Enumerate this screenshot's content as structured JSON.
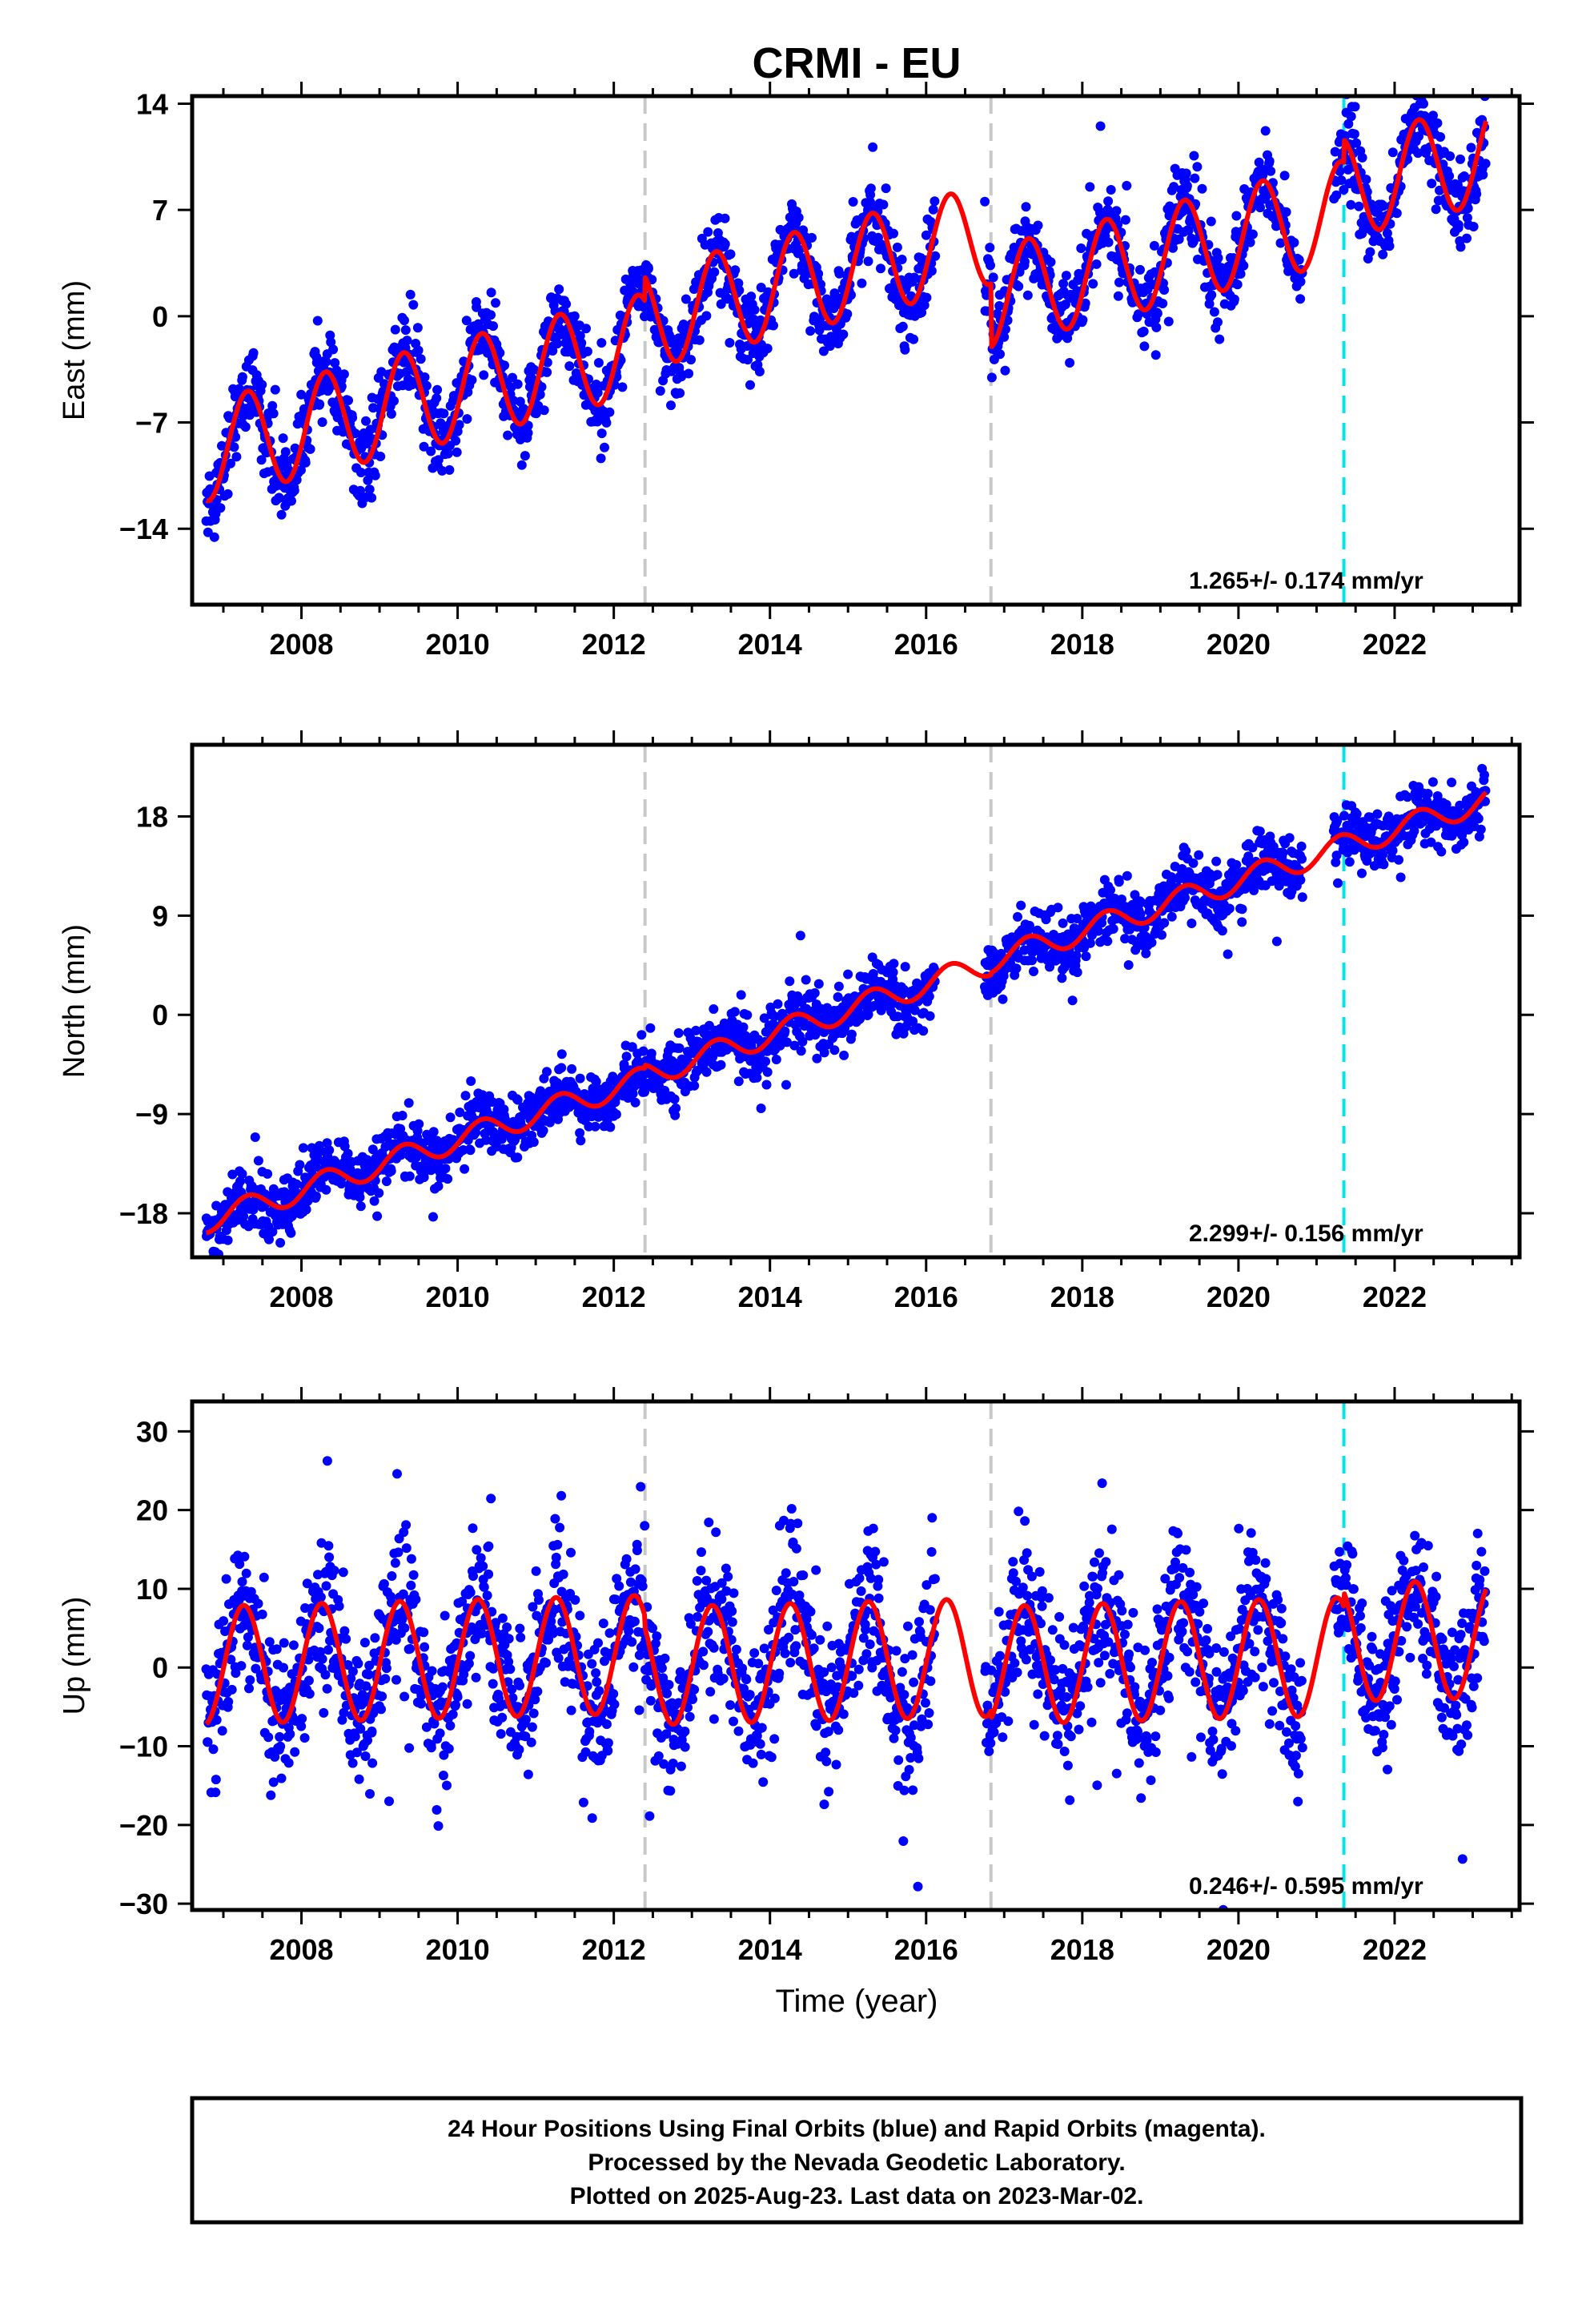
{
  "title": "CRMI - EU",
  "xlabel": "Time (year)",
  "footer": {
    "line1": "24 Hour Positions Using Final Orbits (blue) and Rapid Orbits (magenta).",
    "line2": "Processed by the Nevada Geodetic Laboratory.",
    "line3": "Plotted on 2025-Aug-23. Last data on 2023-Mar-02."
  },
  "colors": {
    "final_orbits": "#0000ff",
    "model_fit": "#ff0000",
    "gray_event_line": "#c8c8c8",
    "cyan_event_line": "#00e5ee"
  },
  "chart_data": [
    {
      "type": "scatter",
      "component": "east",
      "ylabel": "East (mm)",
      "xlim": [
        2006.6,
        2023.6
      ],
      "ylim": [
        -19.0,
        14.5
      ],
      "xticks": [
        2008,
        2010,
        2012,
        2014,
        2016,
        2018,
        2020,
        2022
      ],
      "yticks": [
        14,
        7,
        0,
        -7,
        -14
      ],
      "ytick_labels": [
        "14",
        "7",
        "0",
        "−7",
        "−14"
      ],
      "rate_label": "1.265+/- 0.174 mm/yr",
      "model": {
        "offset": -8.9,
        "slope": 1.265,
        "amp": 3.3,
        "phase": 1.75,
        "steps": [
          {
            "t": 2012.4,
            "dy": 1.6
          },
          {
            "t": 2016.83,
            "dy": -4.2
          },
          {
            "t": 2021.35,
            "dy": 1.5
          }
        ]
      },
      "scatter": {
        "sd": 1.3,
        "gap_yrs": [
          [
            2016.12,
            2016.75
          ],
          [
            2020.82,
            2021.22
          ]
        ],
        "start": 2006.78,
        "end": 2023.17
      },
      "event_lines": [
        {
          "x": 2012.4,
          "color": "#c8c8c8"
        },
        {
          "x": 2016.83,
          "color": "#c8c8c8"
        },
        {
          "x": 2021.35,
          "color": "#00e5ee"
        }
      ],
      "series": [
        {
          "name": "Final Orbits",
          "style": "points",
          "color": "#0000ff"
        },
        {
          "name": "Model",
          "style": "line",
          "color": "#ff0000"
        }
      ]
    },
    {
      "type": "scatter",
      "component": "north",
      "ylabel": "North (mm)",
      "xlim": [
        2006.6,
        2023.6
      ],
      "ylim": [
        -22.0,
        24.5
      ],
      "xticks": [
        2008,
        2010,
        2012,
        2014,
        2016,
        2018,
        2020,
        2022
      ],
      "yticks": [
        18,
        9,
        0,
        -9,
        -18
      ],
      "ytick_labels": [
        "18",
        "9",
        "0",
        "−9",
        "−18"
      ],
      "rate_label": "2.299+/- 0.156 mm/yr",
      "model": {
        "offset": -18.7,
        "slope": 2.299,
        "amp": 1.1,
        "phase": 1.75,
        "steps": [
          {
            "t": 2012.4,
            "dy": 0.3
          },
          {
            "t": 2016.83,
            "dy": 0.2
          },
          {
            "t": 2021.35,
            "dy": 0.0
          }
        ]
      },
      "scatter": {
        "sd": 1.3,
        "gap_yrs": [
          [
            2016.12,
            2016.75
          ],
          [
            2020.82,
            2021.22
          ]
        ],
        "start": 2006.78,
        "end": 2023.17
      },
      "event_lines": [
        {
          "x": 2012.4,
          "color": "#c8c8c8"
        },
        {
          "x": 2016.83,
          "color": "#c8c8c8"
        },
        {
          "x": 2021.35,
          "color": "#00e5ee"
        }
      ],
      "series": [
        {
          "name": "Final Orbits",
          "style": "points",
          "color": "#0000ff"
        },
        {
          "name": "Model",
          "style": "line",
          "color": "#ff0000"
        }
      ]
    },
    {
      "type": "scatter",
      "component": "up",
      "ylabel": "Up (mm)",
      "xlim": [
        2006.6,
        2023.6
      ],
      "ylim": [
        -30.8,
        33.8
      ],
      "xticks": [
        2008,
        2010,
        2012,
        2014,
        2016,
        2018,
        2020,
        2022
      ],
      "yticks": [
        30,
        20,
        10,
        0,
        -10,
        -20,
        -30
      ],
      "ytick_labels": [
        "30",
        "20",
        "10",
        "0",
        "−10",
        "−20",
        "−30"
      ],
      "rate_label": "0.246+/- 0.595 mm/yr",
      "model": {
        "offset": 0.3,
        "slope": 0.246,
        "amp": 7.5,
        "phase": 1.45,
        "steps": [
          {
            "t": 2012.4,
            "dy": -1.5
          },
          {
            "t": 2016.83,
            "dy": -1.0
          },
          {
            "t": 2021.35,
            "dy": 1.8
          }
        ]
      },
      "scatter": {
        "sd": 4.6,
        "gap_yrs": [
          [
            2016.12,
            2016.75
          ],
          [
            2020.82,
            2021.22
          ]
        ],
        "start": 2006.78,
        "end": 2023.17
      },
      "event_lines": [
        {
          "x": 2012.4,
          "color": "#c8c8c8"
        },
        {
          "x": 2016.83,
          "color": "#c8c8c8"
        },
        {
          "x": 2021.35,
          "color": "#00e5ee"
        }
      ],
      "series": [
        {
          "name": "Final Orbits",
          "style": "points",
          "color": "#0000ff"
        },
        {
          "name": "Model",
          "style": "line",
          "color": "#ff0000"
        }
      ]
    }
  ]
}
